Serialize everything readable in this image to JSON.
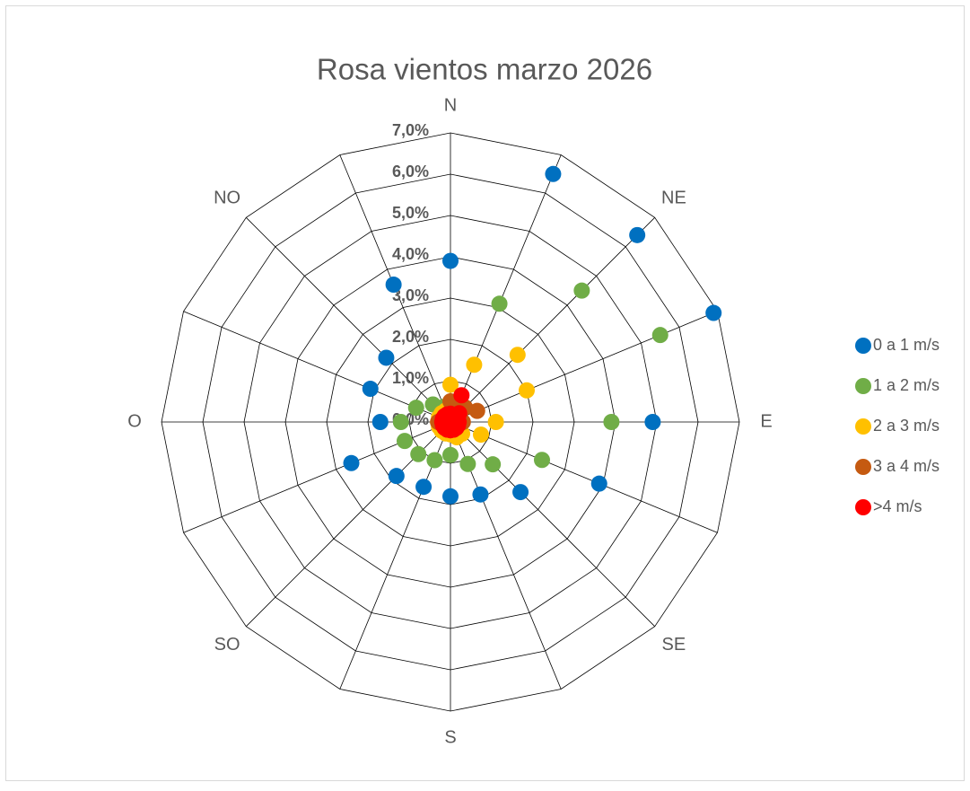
{
  "chart_data": {
    "type": "radar",
    "title": "Rosa vientos marzo 2026",
    "categories": [
      "N",
      null,
      "NE",
      null,
      "E",
      null,
      "SE",
      null,
      "S",
      null,
      "SO",
      null,
      "O",
      null,
      "NO",
      null
    ],
    "series": [
      {
        "name": "0 a 1 m/s",
        "color": "#0070c0",
        "values": [
          3.9,
          6.5,
          6.4,
          6.9,
          4.9,
          3.9,
          2.4,
          1.9,
          1.8,
          1.7,
          1.85,
          2.6,
          1.7,
          2.1,
          2.2,
          3.6
        ]
      },
      {
        "name": "1 a 2 m/s",
        "color": "#70ad47",
        "values": [
          0.3,
          3.1,
          4.5,
          5.5,
          3.9,
          2.4,
          1.45,
          1.1,
          0.8,
          1.0,
          1.1,
          1.2,
          1.2,
          0.9,
          0.6,
          0.4
        ]
      },
      {
        "name": "2 a 3 m/s",
        "color": "#ffc000",
        "values": [
          0.9,
          1.5,
          2.3,
          2.0,
          1.1,
          0.8,
          0.4,
          0.4,
          0.3,
          0.3,
          0.3,
          0.3,
          0.3,
          0.3,
          0.3,
          0.3
        ]
      },
      {
        "name": "3 a 4 m/s",
        "color": "#c55a11",
        "values": [
          0.5,
          0.6,
          0.5,
          0.7,
          0.3,
          0.2,
          0.2,
          0.2,
          0.2,
          0.2,
          0.2,
          0.2,
          0.3,
          0.2,
          0.2,
          0.2
        ]
      },
      {
        "name": ">4 m/s",
        "color": "#ff0000",
        "values": [
          0.2,
          0.7,
          0.3,
          0.2,
          0.2,
          0.2,
          0.2,
          0.2,
          0.2,
          0.2,
          0.2,
          0.2,
          0.2,
          0.2,
          0.2,
          0.2
        ]
      }
    ],
    "ylim": [
      0,
      7
    ],
    "yticks": [
      {
        "value": 0,
        "label": "0,0%"
      },
      {
        "value": 1,
        "label": "1,0%"
      },
      {
        "value": 2,
        "label": "2,0%"
      },
      {
        "value": 3,
        "label": "3,0%"
      },
      {
        "value": 4,
        "label": "4,0%"
      },
      {
        "value": 5,
        "label": "5,0%"
      },
      {
        "value": 6,
        "label": "6,0%"
      },
      {
        "value": 7,
        "label": "7,0%"
      }
    ],
    "grid": true,
    "legend": "right"
  }
}
